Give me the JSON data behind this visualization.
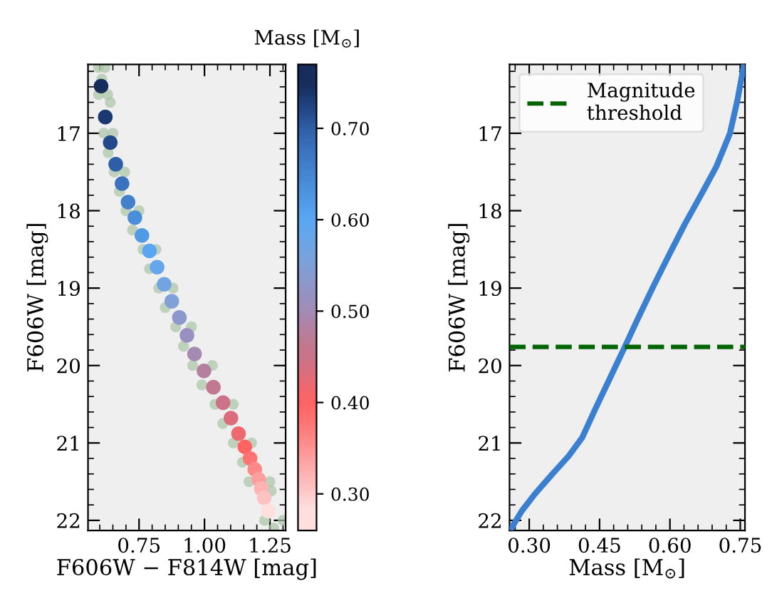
{
  "chart_data": [
    {
      "type": "scatter",
      "xlabel": "F606W − F814W [mag]",
      "ylabel": "F606W [mag]",
      "clabel": "Mass [M$_{⊙}$]",
      "xlim": [
        0.555,
        1.31
      ],
      "ylim": [
        22.13,
        16.11
      ],
      "xticks": [
        {
          "value": 0.75,
          "label": "0.75"
        },
        {
          "value": 1.0,
          "label": "1.00"
        },
        {
          "value": 1.25,
          "label": "1.25"
        }
      ],
      "yticks": [
        17,
        18,
        19,
        20,
        21,
        22
      ],
      "clim": [
        0.26,
        0.77
      ],
      "cticks": [
        {
          "value": 0.3,
          "label": "0.30"
        },
        {
          "value": 0.4,
          "label": "0.40"
        },
        {
          "value": 0.5,
          "label": "0.50"
        },
        {
          "value": 0.6,
          "label": "0.60"
        },
        {
          "value": 0.7,
          "label": "0.70"
        }
      ],
      "grid": false,
      "series": [
        {
          "color": "#a9c4a5",
          "marker": "circle",
          "x": [
            0.595,
            0.62,
            0.595,
            0.63,
            0.615,
            0.65,
            0.655,
            0.695,
            0.7,
            0.75,
            0.765,
            0.815,
            0.825,
            0.88,
            0.89,
            0.95,
            0.955,
            1.03,
            1.04,
            1.11,
            1.11,
            1.18,
            1.17,
            1.25,
            1.23,
            1.3,
            0.608,
            0.64,
            0.632,
            0.675,
            0.725,
            0.79,
            0.85,
            0.92,
            0.99,
            1.07,
            1.145,
            1.255,
            1.265
          ],
          "values": [
            16.15,
            16.15,
            16.5,
            16.5,
            17.0,
            17.0,
            17.5,
            17.5,
            18.0,
            18.0,
            18.5,
            18.5,
            19.0,
            19.0,
            19.5,
            19.5,
            20.0,
            20.0,
            20.5,
            20.5,
            21.0,
            21.0,
            21.5,
            21.5,
            22.0,
            22.0,
            16.3,
            16.6,
            17.25,
            17.75,
            18.25,
            18.75,
            19.25,
            19.75,
            20.25,
            20.75,
            21.25,
            21.62,
            22.1
          ]
        },
        {
          "marker": "circle",
          "x": [
            0.605,
            0.621,
            0.64,
            0.661,
            0.685,
            0.708,
            0.734,
            0.761,
            0.79,
            0.819,
            0.846,
            0.875,
            0.904,
            0.933,
            0.962,
            0.998,
            1.034,
            1.071,
            1.101,
            1.13,
            1.154,
            1.174,
            1.192,
            1.207,
            1.217,
            1.228,
            1.243
          ],
          "values": [
            16.39,
            16.79,
            17.12,
            17.4,
            17.65,
            17.89,
            18.09,
            18.32,
            18.52,
            18.73,
            18.95,
            19.17,
            19.38,
            19.61,
            19.85,
            20.07,
            20.28,
            20.48,
            20.68,
            20.88,
            21.05,
            21.2,
            21.34,
            21.47,
            21.59,
            21.71,
            21.88
          ],
          "cvalues": [
            0.749,
            0.736,
            0.72,
            0.701,
            0.679,
            0.658,
            0.639,
            0.619,
            0.602,
            0.585,
            0.567,
            0.549,
            0.533,
            0.515,
            0.497,
            0.479,
            0.463,
            0.447,
            0.432,
            0.417,
            0.399,
            0.38,
            0.359,
            0.339,
            0.322,
            0.306,
            0.284
          ],
          "colors": [
            "#172d5c",
            "#1c3870",
            "#24498a",
            "#2d5ea6",
            "#3a72bd",
            "#4280cb",
            "#4a8ed9",
            "#519be6",
            "#59a7f3",
            "#65a6ec",
            "#72a3e2",
            "#80a0d7",
            "#8b98cc",
            "#9890c0",
            "#a58ab2",
            "#b5809f",
            "#c2788f",
            "#cc7389",
            "#dc6e7c",
            "#ee686f",
            "#ff6363",
            "#ff7373",
            "#ff8888",
            "#ff9e9e",
            "#ffb2b2",
            "#ffc2c2",
            "#ffdede"
          ]
        }
      ]
    },
    {
      "type": "line",
      "xlabel": "Mass [M$_{⊙}$]",
      "ylabel": "F606W [mag]",
      "xlim": [
        0.258,
        0.76
      ],
      "ylim": [
        22.13,
        16.11
      ],
      "xticks": [
        {
          "value": 0.3,
          "label": "0.30"
        },
        {
          "value": 0.45,
          "label": "0.45"
        },
        {
          "value": 0.6,
          "label": "0.60"
        },
        {
          "value": 0.75,
          "label": "0.75"
        }
      ],
      "yticks": [
        17,
        18,
        19,
        20,
        21,
        22
      ],
      "grid": false,
      "legend": "top left",
      "marker": "none",
      "line_style": "solid",
      "series": [
        {
          "color": "#3a7fd0",
          "x": [
            0.26,
            0.284,
            0.312,
            0.351,
            0.384,
            0.413,
            0.441,
            0.47,
            0.499,
            0.532,
            0.566,
            0.599,
            0.632,
            0.666,
            0.699,
            0.728,
            0.744,
            0.758
          ],
          "values": [
            22.12,
            21.88,
            21.66,
            21.39,
            21.17,
            20.93,
            20.56,
            20.19,
            19.82,
            19.39,
            18.96,
            18.56,
            18.17,
            17.8,
            17.43,
            17.0,
            16.57,
            16.11
          ]
        }
      ],
      "ref_lines": [
        {
          "axis": "y",
          "value": 19.76,
          "label": "Magnitude\nthreshold",
          "color": "#006400",
          "line_style": "dashed"
        }
      ]
    }
  ]
}
